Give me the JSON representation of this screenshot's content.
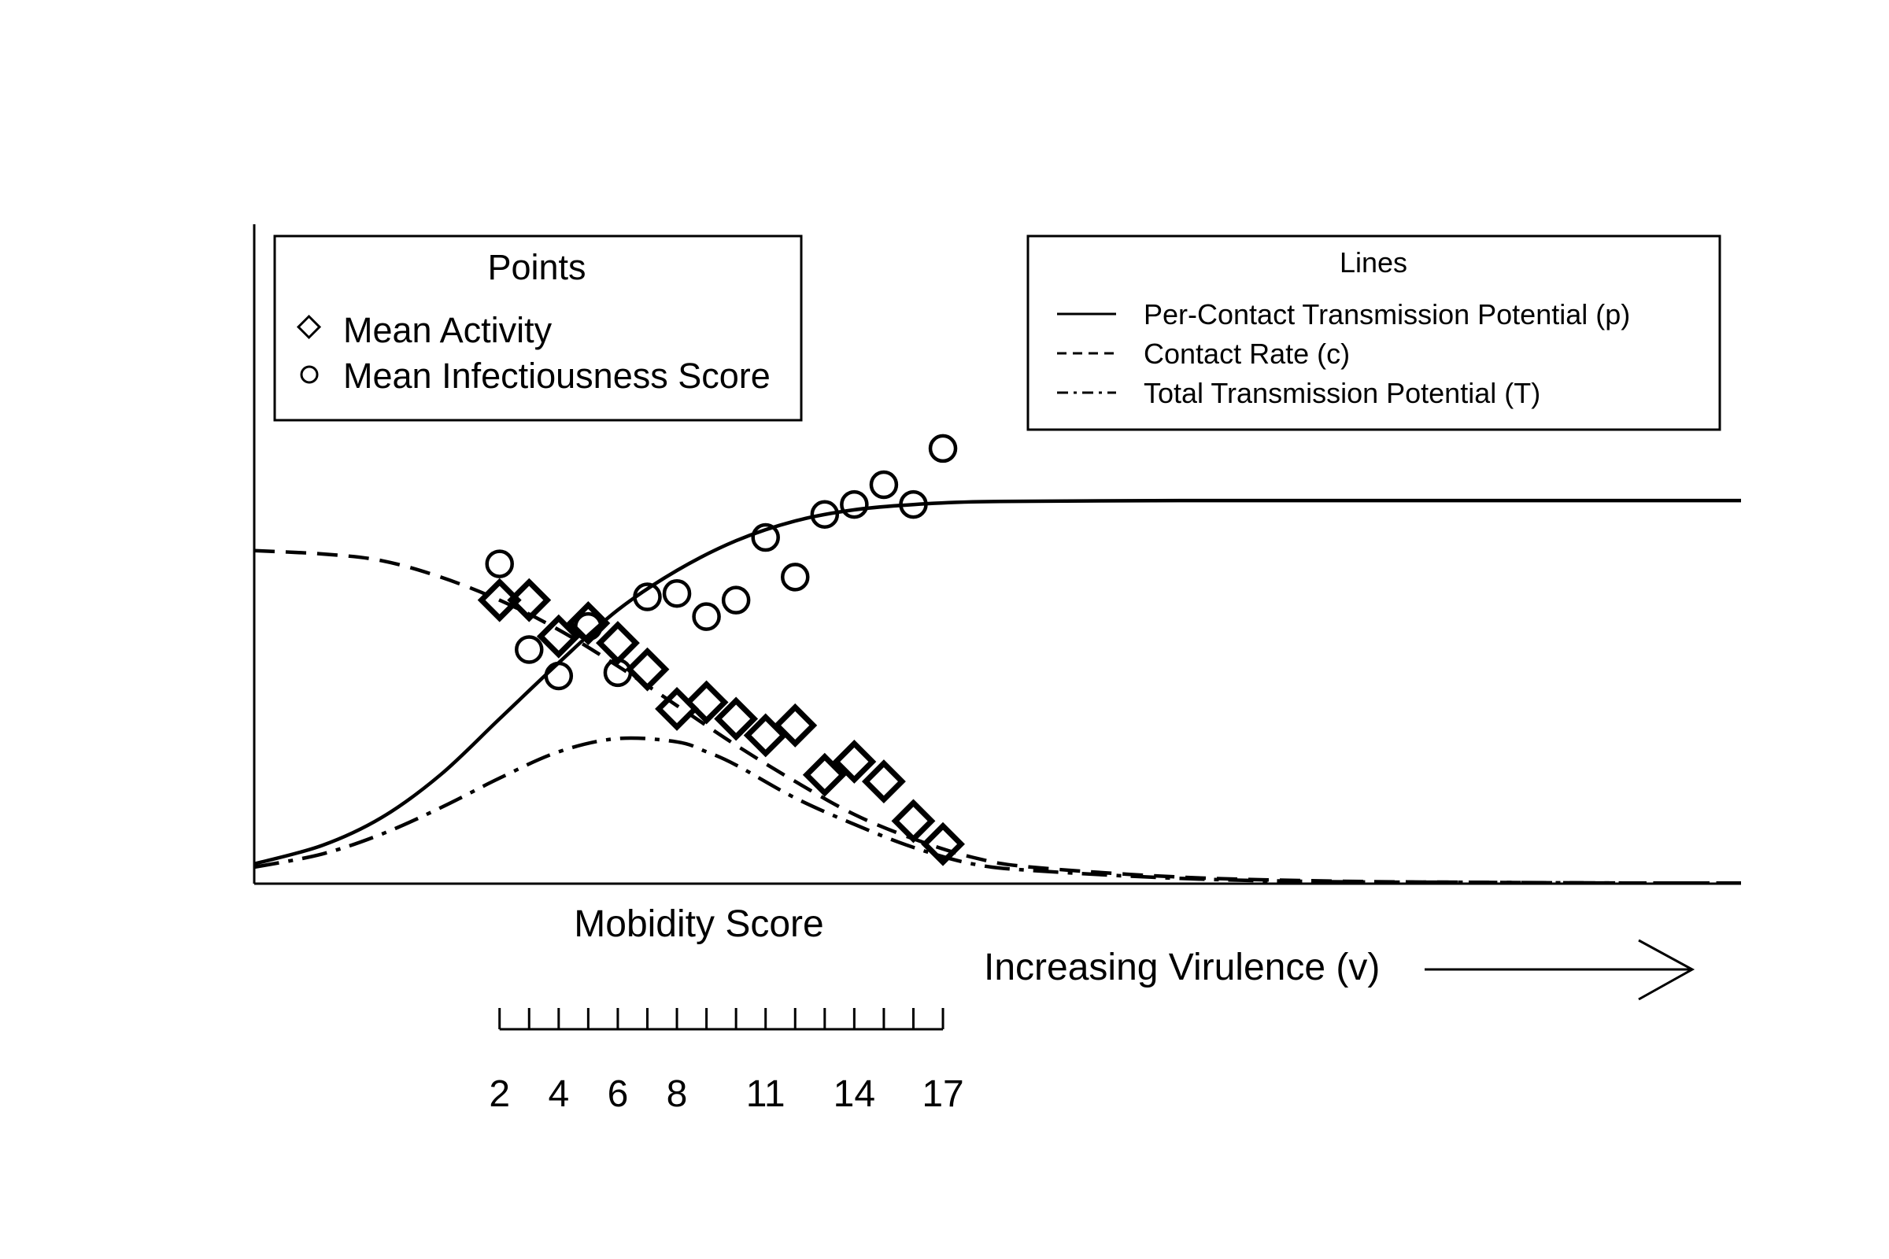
{
  "chart_data": {
    "type": "scatter",
    "title": "",
    "xlabel": "Mobidity Score",
    "ylabel": "",
    "virulence_label": "Increasing Virulence (v)",
    "xlim": [
      -6.3,
      44
    ],
    "ylim": [
      0,
      1
    ],
    "grid": false,
    "x_ticks": [
      2,
      3,
      4,
      5,
      6,
      7,
      8,
      9,
      10,
      11,
      12,
      13,
      14,
      15,
      16,
      17
    ],
    "x_tick_labels": [
      "2",
      "4",
      "6",
      "8",
      "11",
      "14",
      "17"
    ],
    "x_tick_label_values": [
      2,
      4,
      6,
      8,
      11,
      14,
      17
    ],
    "points_legend": {
      "title": "Points",
      "placement": "top-left",
      "items": [
        "Mean Activity",
        "Mean Infectiousness Score"
      ]
    },
    "lines_legend": {
      "title": "Lines",
      "placement": "top-right",
      "items": [
        "Per-Contact Transmission Potential (p)",
        "Contact Rate (c)",
        "Total Transmission Potential (T)"
      ]
    },
    "series": [
      {
        "name": "Mean Activity",
        "marker": "diamond",
        "points": [
          [
            2,
            0.43
          ],
          [
            3,
            0.43
          ],
          [
            4,
            0.375
          ],
          [
            5,
            0.395
          ],
          [
            6,
            0.365
          ],
          [
            7,
            0.325
          ],
          [
            8,
            0.265
          ],
          [
            9,
            0.275
          ],
          [
            10,
            0.25
          ],
          [
            11,
            0.225
          ],
          [
            12,
            0.24
          ],
          [
            13,
            0.165
          ],
          [
            14,
            0.185
          ],
          [
            15,
            0.155
          ],
          [
            16,
            0.095
          ],
          [
            17,
            0.06
          ]
        ]
      },
      {
        "name": "Mean Infectiousness Score",
        "marker": "circle",
        "points": [
          [
            2,
            0.485
          ],
          [
            3,
            0.355
          ],
          [
            4,
            0.315
          ],
          [
            5,
            0.39
          ],
          [
            6,
            0.32
          ],
          [
            7,
            0.435
          ],
          [
            8,
            0.44
          ],
          [
            9,
            0.405
          ],
          [
            10,
            0.43
          ],
          [
            11,
            0.525
          ],
          [
            12,
            0.465
          ],
          [
            13,
            0.56
          ],
          [
            14,
            0.575
          ],
          [
            15,
            0.605
          ],
          [
            16,
            0.575
          ],
          [
            17,
            0.66
          ]
        ]
      },
      {
        "name": "Per-Contact Transmission Potential (p)",
        "line_style": "solid",
        "x": [
          -6.3,
          -4,
          -2,
          0,
          2,
          4,
          6,
          8,
          10,
          12,
          14,
          16,
          18,
          20,
          25,
          30,
          35,
          40,
          44
        ],
        "y": [
          0.03,
          0.058,
          0.1,
          0.165,
          0.25,
          0.335,
          0.415,
          0.475,
          0.52,
          0.55,
          0.567,
          0.575,
          0.579,
          0.58,
          0.581,
          0.581,
          0.581,
          0.581,
          0.581
        ]
      },
      {
        "name": "Contact Rate (c)",
        "line_style": "dashed",
        "x": [
          -6.3,
          -4,
          -2,
          0,
          2,
          4,
          6,
          8,
          10,
          12,
          14,
          16,
          18,
          20,
          25,
          30,
          35,
          40,
          44
        ],
        "y": [
          0.505,
          0.5,
          0.49,
          0.465,
          0.43,
          0.385,
          0.33,
          0.27,
          0.21,
          0.155,
          0.105,
          0.068,
          0.04,
          0.025,
          0.01,
          0.004,
          0.002,
          0.001,
          0.001
        ]
      },
      {
        "name": "Total Transmission Potential (T)",
        "line_style": "dashdot",
        "x": [
          -6.3,
          -4,
          -2,
          0,
          2,
          4,
          6,
          8,
          9,
          10,
          12,
          14,
          16,
          18,
          20,
          25,
          30,
          35,
          40,
          44
        ],
        "y": [
          0.025,
          0.045,
          0.075,
          0.115,
          0.16,
          0.2,
          0.22,
          0.215,
          0.2,
          0.18,
          0.13,
          0.09,
          0.055,
          0.03,
          0.02,
          0.008,
          0.003,
          0.002,
          0.001,
          0.001
        ]
      }
    ]
  }
}
